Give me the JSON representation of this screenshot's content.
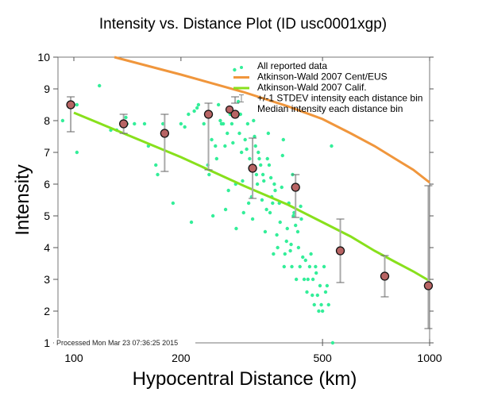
{
  "chart_data": {
    "type": "scatter",
    "title": "Intensity vs. Distance Plot (ID usc0001xgp)",
    "xlabel": "Hypocentral Distance (km)",
    "ylabel": "Intensity",
    "xscale": "log",
    "xlim": [
      100,
      1000
    ],
    "ylim": [
      1,
      10
    ],
    "xticks": [
      100,
      200,
      500,
      1000
    ],
    "xtick_labels": [
      "100",
      "200",
      "500",
      "1000"
    ],
    "yticks": [
      1,
      2,
      3,
      4,
      5,
      6,
      7,
      8,
      9,
      10
    ],
    "ytick_labels": [
      "1",
      "2",
      "3",
      "4",
      "5",
      "6",
      "7",
      "8",
      "9",
      "10"
    ],
    "grid": false,
    "legend_position": "top-right",
    "footnote": "Processed Mon Mar 23 07:36:25 2015",
    "colors": {
      "scatter": "#33ee99",
      "cent_eus": "#f0963c",
      "calif": "#88e01c",
      "errorbar": "#aaaaaa",
      "median_fill": "#b86464"
    },
    "legend": [
      {
        "label": "All reported data",
        "kind": "dot"
      },
      {
        "label": "Atkinson-Wald 2007 Cent/EUS",
        "kind": "line-orange"
      },
      {
        "label": "Atkinson-Wald 2007 Calif.",
        "kind": "line-green"
      },
      {
        "label": "+/-1 STDEV intensity each distance bin",
        "kind": "errorbar"
      },
      {
        "label": "Median intensity each distance bin",
        "kind": "median"
      }
    ],
    "series": [
      {
        "name": "Atkinson-Wald 2007 Cent/EUS",
        "type": "line",
        "x": [
          130,
          200,
          300,
          400,
          500,
          600,
          700,
          800,
          900,
          1000
        ],
        "y": [
          10.0,
          9.45,
          8.9,
          8.45,
          8.05,
          7.6,
          7.2,
          6.8,
          6.45,
          6.05
        ]
      },
      {
        "name": "Atkinson-Wald 2007 Calif.",
        "type": "line",
        "x": [
          100,
          200,
          300,
          400,
          500,
          600,
          700,
          800,
          900,
          1000
        ],
        "y": [
          8.25,
          6.85,
          5.95,
          5.35,
          4.8,
          4.35,
          3.9,
          3.55,
          3.25,
          2.95
        ]
      },
      {
        "name": "Median intensity each distance bin",
        "type": "scatter",
        "points": [
          {
            "x": 98,
            "y": 8.5,
            "lo": 7.65,
            "hi": 8.75
          },
          {
            "x": 138,
            "y": 7.9,
            "lo": 7.6,
            "hi": 8.2
          },
          {
            "x": 180,
            "y": 7.6,
            "lo": 6.4,
            "hi": 8.2
          },
          {
            "x": 239,
            "y": 8.2,
            "lo": 6.45,
            "hi": 8.55
          },
          {
            "x": 284,
            "y": 8.2,
            "lo": 8.55,
            "hi": 8.75
          },
          {
            "x": 318,
            "y": 6.5,
            "lo": 5.55,
            "hi": 7.45
          },
          {
            "x": 420,
            "y": 5.9,
            "lo": 4.95,
            "hi": 6.3
          },
          {
            "x": 561,
            "y": 3.9,
            "lo": 2.9,
            "hi": 4.9
          },
          {
            "x": 748,
            "y": 3.1,
            "lo": 2.45,
            "hi": 3.75
          },
          {
            "x": 992,
            "y": 2.8,
            "lo": 1.45,
            "hi": 5.95
          }
        ]
      },
      {
        "name": "All reported data",
        "type": "scatter",
        "points": [
          [
            93,
            8.0
          ],
          [
            102,
            8.5
          ],
          [
            102,
            7.0
          ],
          [
            118,
            9.1
          ],
          [
            127,
            7.7
          ],
          [
            132,
            7.7
          ],
          [
            138,
            7.9
          ],
          [
            140,
            8.1
          ],
          [
            141,
            7.9
          ],
          [
            148,
            7.9
          ],
          [
            158,
            7.9
          ],
          [
            162,
            7.2
          ],
          [
            170,
            6.6
          ],
          [
            172,
            6.3
          ],
          [
            178,
            7.9
          ],
          [
            190,
            5.4
          ],
          [
            200,
            7.9
          ],
          [
            205,
            7.8
          ],
          [
            210,
            8.2
          ],
          [
            214,
            4.8
          ],
          [
            218,
            8.3
          ],
          [
            222,
            8.4
          ],
          [
            224,
            8.5
          ],
          [
            232,
            7.9
          ],
          [
            236,
            8.2
          ],
          [
            238,
            6.6
          ],
          [
            240,
            6.3
          ],
          [
            244,
            7.4
          ],
          [
            246,
            5.0
          ],
          [
            250,
            7.2
          ],
          [
            252,
            6.8
          ],
          [
            255,
            8.5
          ],
          [
            258,
            8.0
          ],
          [
            260,
            7.9
          ],
          [
            263,
            7.9
          ],
          [
            266,
            7.2
          ],
          [
            267,
            5.2
          ],
          [
            270,
            7.6
          ],
          [
            272,
            5.8
          ],
          [
            275,
            8.2
          ],
          [
            278,
            7.9
          ],
          [
            280,
            7.3
          ],
          [
            283,
            9.6
          ],
          [
            285,
            6.0
          ],
          [
            286,
            4.6
          ],
          [
            290,
            8.6
          ],
          [
            292,
            7.6
          ],
          [
            294,
            8.2
          ],
          [
            296,
            7.0
          ],
          [
            298,
            6.1
          ],
          [
            300,
            5.1
          ],
          [
            303,
            7.4
          ],
          [
            306,
            7.1
          ],
          [
            308,
            7.9
          ],
          [
            310,
            5.4
          ],
          [
            312,
            6.8
          ],
          [
            316,
            5.6
          ],
          [
            318,
            4.9
          ],
          [
            320,
            8.0
          ],
          [
            322,
            7.5
          ],
          [
            324,
            7.2
          ],
          [
            326,
            6.3
          ],
          [
            328,
            6.0
          ],
          [
            330,
            7.0
          ],
          [
            332,
            6.8
          ],
          [
            335,
            6.6
          ],
          [
            338,
            5.5
          ],
          [
            340,
            6.3
          ],
          [
            342,
            6.1
          ],
          [
            345,
            4.5
          ],
          [
            348,
            5.2
          ],
          [
            350,
            6.8
          ],
          [
            352,
            7.6
          ],
          [
            354,
            6.6
          ],
          [
            356,
            5.1
          ],
          [
            358,
            6.2
          ],
          [
            360,
            5.6
          ],
          [
            362,
            5.4
          ],
          [
            364,
            3.8
          ],
          [
            366,
            6.0
          ],
          [
            368,
            5.8
          ],
          [
            372,
            4.4
          ],
          [
            374,
            4.0
          ],
          [
            378,
            5.4
          ],
          [
            380,
            4.8
          ],
          [
            384,
            5.9
          ],
          [
            386,
            6.9
          ],
          [
            388,
            7.4
          ],
          [
            390,
            3.4
          ],
          [
            392,
            3.8
          ],
          [
            396,
            4.2
          ],
          [
            398,
            4.6
          ],
          [
            402,
            5.4
          ],
          [
            406,
            3.9
          ],
          [
            408,
            4.1
          ],
          [
            410,
            3.4
          ],
          [
            412,
            6.3
          ],
          [
            414,
            5.0
          ],
          [
            416,
            5.1
          ],
          [
            420,
            4.7
          ],
          [
            422,
            3.0
          ],
          [
            426,
            4.5
          ],
          [
            428,
            4.0
          ],
          [
            432,
            3.4
          ],
          [
            434,
            5.3
          ],
          [
            436,
            4.9
          ],
          [
            440,
            3.7
          ],
          [
            444,
            3.0
          ],
          [
            448,
            3.6
          ],
          [
            452,
            2.6
          ],
          [
            455,
            3.0
          ],
          [
            460,
            3.4
          ],
          [
            464,
            3.8
          ],
          [
            468,
            2.5
          ],
          [
            470,
            3.0
          ],
          [
            474,
            2.2
          ],
          [
            478,
            3.4
          ],
          [
            480,
            3.2
          ],
          [
            484,
            2.5
          ],
          [
            488,
            2.0
          ],
          [
            492,
            2.8
          ],
          [
            496,
            2.2
          ],
          [
            500,
            2.0
          ],
          [
            505,
            3.4
          ],
          [
            510,
            2.6
          ],
          [
            515,
            2.8
          ],
          [
            520,
            2.2
          ],
          [
            530,
            7.2
          ],
          [
            534,
            1.0
          ]
        ]
      }
    ]
  }
}
